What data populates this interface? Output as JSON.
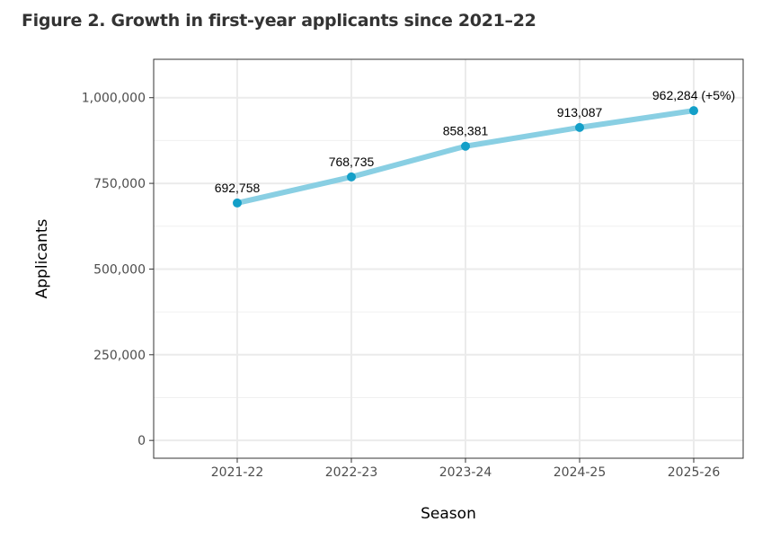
{
  "chart_data": {
    "type": "line",
    "title": "Figure 2. Growth in first-year applicants since 2021–22",
    "xlabel": "Season",
    "ylabel": "Applicants",
    "categories": [
      "2021-22",
      "2022-23",
      "2023-24",
      "2024-25",
      "2025-26"
    ],
    "series": [
      {
        "values": [
          692758,
          768735,
          858381,
          913087,
          962284
        ]
      }
    ],
    "data_labels": [
      "692,758",
      "768,735",
      "858,381",
      "913,087",
      "962,284 (+5%)"
    ],
    "yticks": [
      0,
      250000,
      500000,
      750000,
      1000000
    ],
    "ytick_labels": [
      "0",
      "250,000",
      "500,000",
      "750,000",
      "1,000,000"
    ],
    "ylim": [
      -52000,
      1112000
    ],
    "grid": true,
    "colors": {
      "line": "#89CFE3",
      "point": "#139FC8"
    }
  }
}
